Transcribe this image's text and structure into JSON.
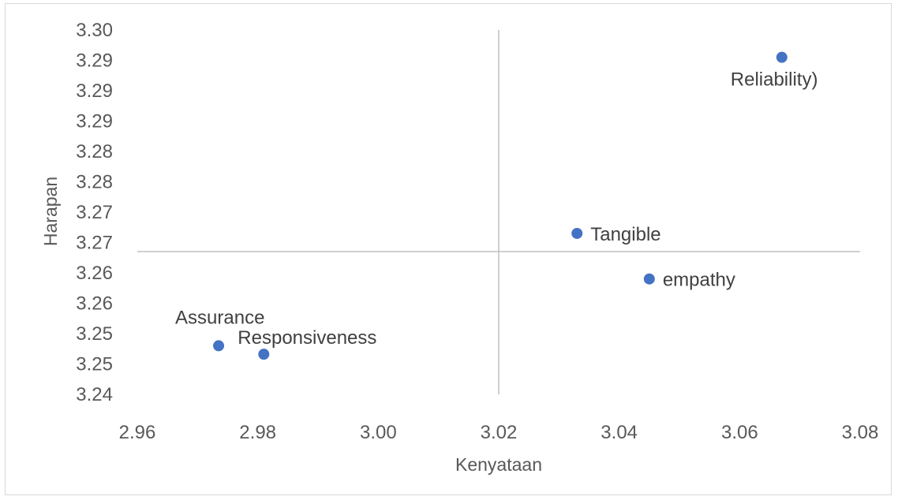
{
  "chart_data": {
    "type": "scatter",
    "title": "",
    "xlabel": "Kenyataan",
    "ylabel": "Harapan",
    "xlim": [
      2.96,
      3.08
    ],
    "ylim": [
      3.24,
      3.3
    ],
    "x_ticks": [
      2.96,
      2.98,
      3.0,
      3.02,
      3.04,
      3.06,
      3.08
    ],
    "x_tick_labels": [
      "2.96",
      "2.98",
      "3.00",
      "3.02",
      "3.04",
      "3.06",
      "3.08"
    ],
    "y_ticks": [
      3.24,
      3.245,
      3.25,
      3.255,
      3.26,
      3.265,
      3.27,
      3.275,
      3.28,
      3.285,
      3.29,
      3.295,
      3.3
    ],
    "y_tick_labels": [
      "3.24",
      "3.25",
      "3.25",
      "3.26",
      "3.26",
      "3.27",
      "3.27",
      "3.28",
      "3.28",
      "3.29",
      "3.29",
      "3.29",
      "3.30"
    ],
    "crosshair": {
      "x": 3.02,
      "y": 3.2635
    },
    "grid": false,
    "legend": "none",
    "marker_color": "#4472c4",
    "points": [
      {
        "label": "Reliability)",
        "x": 3.067,
        "y": 3.2955,
        "label_position": "below"
      },
      {
        "label": "Tangible",
        "x": 3.033,
        "y": 3.2665,
        "label_position": "right"
      },
      {
        "label": "empathy",
        "x": 3.045,
        "y": 3.259,
        "label_position": "right"
      },
      {
        "label": "Assurance",
        "x": 2.9735,
        "y": 3.248,
        "label_position": "above"
      },
      {
        "label": "Responsiveness",
        "x": 2.981,
        "y": 3.2466,
        "label_position": "above-right"
      }
    ]
  }
}
